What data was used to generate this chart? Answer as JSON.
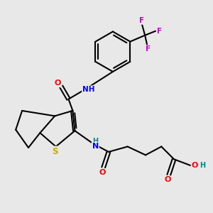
{
  "background_color": "#e8e8e8",
  "bond_color": "#000000",
  "bond_width": 1.5,
  "colors": {
    "O": "#ff0000",
    "N": "#0000ff",
    "S": "#ccaa00",
    "F": "#cc00cc",
    "H": "#008888",
    "C": "#000000"
  },
  "figsize": [
    3.0,
    3.0
  ],
  "dpi": 100
}
